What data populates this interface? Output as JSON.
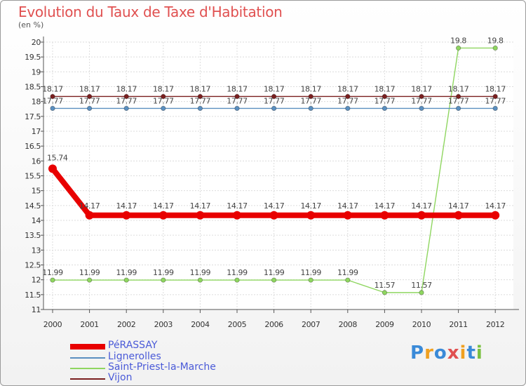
{
  "chart_data": {
    "type": "line",
    "title": "Evolution du Taux de Taxe d'Habitation",
    "ylabel": "(en %)",
    "xlabel": "",
    "ylim": [
      11,
      20
    ],
    "yticks": [
      "11",
      "11.5",
      "12",
      "12.5",
      "13",
      "13.5",
      "14",
      "14.5",
      "15",
      "15.5",
      "16",
      "16.5",
      "17",
      "17.5",
      "18",
      "18.5",
      "19",
      "19.5",
      "20"
    ],
    "categories": [
      "2000",
      "2001",
      "2002",
      "2003",
      "2004",
      "2005",
      "2006",
      "2007",
      "2008",
      "2009",
      "2010",
      "2011",
      "2012"
    ],
    "series": [
      {
        "name": "PéRASSAY",
        "color": "#e80000",
        "values": [
          15.74,
          14.17,
          14.17,
          14.17,
          14.17,
          14.17,
          14.17,
          14.17,
          14.17,
          14.17,
          14.17,
          14.17,
          14.17
        ],
        "labels": [
          "15.74",
          "14.17",
          "14.17",
          "14.17",
          "14.17",
          "14.17",
          "14.17",
          "14.17",
          "14.17",
          "14.17",
          "14.17",
          "14.17",
          "14.17"
        ]
      },
      {
        "name": "Lignerolles",
        "color": "#5a8fc0",
        "values": [
          17.77,
          17.77,
          17.77,
          17.77,
          17.77,
          17.77,
          17.77,
          17.77,
          17.77,
          17.77,
          17.77,
          17.77,
          17.77
        ],
        "labels": [
          "17.77",
          "17.77",
          "17.77",
          "17.77",
          "17.77",
          "17.77",
          "17.77",
          "17.77",
          "17.77",
          "17.77",
          "17.77",
          "17.77",
          "17.77"
        ]
      },
      {
        "name": "Saint-Priest-la-Marche",
        "color": "#8fd660",
        "values": [
          11.99,
          11.99,
          11.99,
          11.99,
          11.99,
          11.99,
          11.99,
          11.99,
          11.99,
          11.57,
          11.57,
          19.8,
          19.8
        ],
        "labels": [
          "11.99",
          "11.99",
          "11.99",
          "11.99",
          "11.99",
          "11.99",
          "11.99",
          "11.99",
          "11.99",
          "11.57",
          "11.57",
          "19.8",
          "19.8"
        ]
      },
      {
        "name": "Vijon",
        "color": "#7a1f1f",
        "values": [
          18.17,
          18.17,
          18.17,
          18.17,
          18.17,
          18.17,
          18.17,
          18.17,
          18.17,
          18.17,
          18.17,
          18.17,
          18.17
        ],
        "labels": [
          "18.17",
          "18.17",
          "18.17",
          "18.17",
          "18.17",
          "18.17",
          "18.17",
          "18.17",
          "18.17",
          "18.17",
          "18.17",
          "18.17",
          "18.17"
        ]
      }
    ],
    "grid": true,
    "legend_position": "bottom-left"
  },
  "logo": {
    "text": "Proxiti",
    "letters": [
      "P",
      "r",
      "o",
      "x",
      "i",
      "t",
      "i"
    ],
    "colors": [
      "#3a8ad8",
      "#f0a020",
      "#3a8ad8",
      "#e05050",
      "#f0a020",
      "#3a8ad8",
      "#7ac040"
    ]
  }
}
